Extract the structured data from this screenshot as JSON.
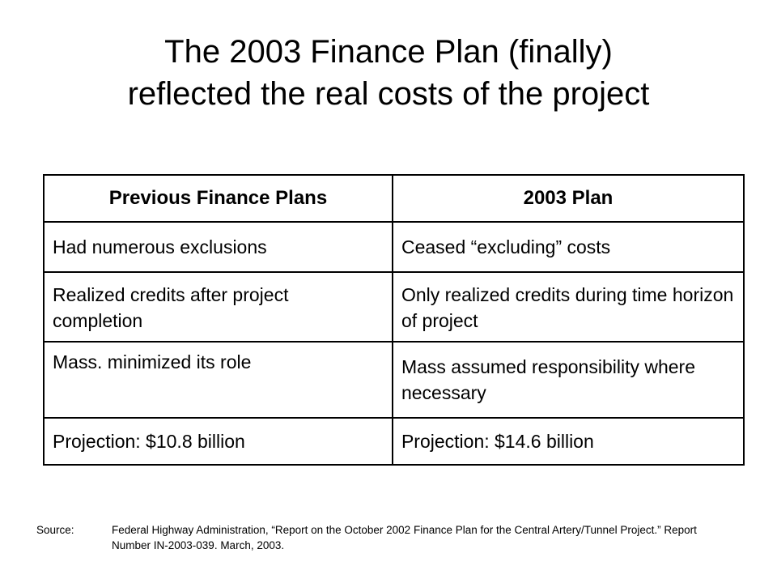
{
  "title": {
    "line1": "The 2003 Finance Plan (finally)",
    "line2": "reflected the real costs of the project"
  },
  "table": {
    "headers": [
      "Previous Finance Plans",
      "2003 Plan"
    ],
    "rows": [
      [
        "Had numerous exclusions",
        "Ceased “excluding” costs"
      ],
      [
        "Realized credits after project completion",
        "Only realized credits during time horizon of project"
      ],
      [
        "Mass. minimized its role",
        "Mass assumed responsibility where necessary"
      ],
      [
        "Projection:  $10.8 billion",
        "Projection:  $14.6 billion"
      ]
    ]
  },
  "source": {
    "label": "Source:",
    "text": "Federal Highway Administration, “Report on the October 2002 Finance Plan for the Central Artery/Tunnel Project.” Report Number IN-2003-039.  March, 2003."
  }
}
